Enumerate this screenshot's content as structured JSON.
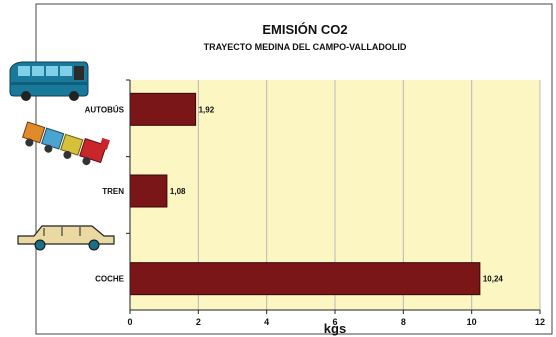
{
  "chart_data": {
    "type": "bar",
    "orientation": "horizontal",
    "title": "EMISIÓN CO2",
    "subtitle": "TRAYECTO MEDINA DEL CAMPO-VALLADOLID",
    "xlabel": "kgs",
    "categories": [
      "AUTOBÚS",
      "TREN",
      "COCHE"
    ],
    "values": [
      1.92,
      1.08,
      10.24
    ],
    "value_labels": [
      "1,92",
      "1,08",
      "10,24"
    ],
    "xlim": [
      0,
      12
    ],
    "xticks": [
      0,
      2,
      4,
      6,
      8,
      10,
      12
    ],
    "grid": true,
    "legend": "none",
    "colors": {
      "bar": "#7a1518",
      "plot_background": "#fbf6c2",
      "grid": "#b9b9b9"
    },
    "icons": [
      "bus-icon",
      "train-icon",
      "car-icon"
    ]
  }
}
